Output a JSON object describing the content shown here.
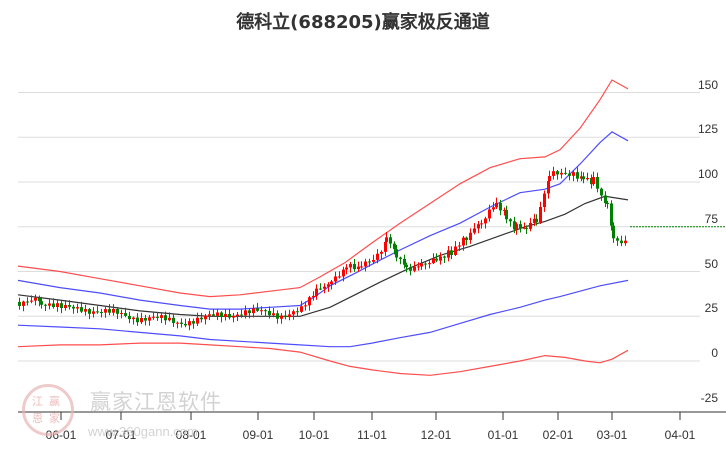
{
  "title": "德科立(688205)赢家极反通道",
  "watermark": {
    "brand": "赢家江恩软件",
    "url": "www.360gann.com",
    "logo_chars": [
      "江",
      "赢",
      "恩",
      "家"
    ]
  },
  "colors": {
    "outer_band": "#ff3333",
    "inner_band": "#3333ff",
    "middle_line": "#333333",
    "candle_up": "#ff0000",
    "candle_down": "#008000",
    "last_price_line": "#008000",
    "grid": "#dddddd"
  },
  "chart_data": {
    "type": "candlestick-channel",
    "title": "德科立(688205)赢家极反通道",
    "xlabel": "",
    "ylabel": "",
    "ylim": [
      -25,
      165
    ],
    "grid": true,
    "y_ticks": [
      150,
      125,
      100,
      75,
      50,
      25,
      0,
      -25
    ],
    "x_ticks": [
      "06-01",
      "07-01",
      "08-01",
      "09-01",
      "10-01",
      "11-01",
      "12-01",
      "01-01",
      "02-01",
      "03-01",
      "04-01"
    ],
    "last_price": 75,
    "series": [
      {
        "name": "upper_outer",
        "color": "red",
        "points": [
          [
            18,
            53
          ],
          [
            60,
            50
          ],
          [
            100,
            46
          ],
          [
            140,
            42
          ],
          [
            180,
            38
          ],
          [
            210,
            36
          ],
          [
            240,
            37
          ],
          [
            270,
            39
          ],
          [
            300,
            41
          ],
          [
            320,
            47
          ],
          [
            345,
            55
          ],
          [
            372,
            66
          ],
          [
            400,
            77
          ],
          [
            430,
            88
          ],
          [
            460,
            99
          ],
          [
            490,
            108
          ],
          [
            520,
            113
          ],
          [
            545,
            114
          ],
          [
            560,
            118
          ],
          [
            580,
            130
          ],
          [
            600,
            146
          ],
          [
            612,
            157
          ],
          [
            628,
            152
          ]
        ]
      },
      {
        "name": "upper_inner",
        "color": "blue",
        "points": [
          [
            18,
            45
          ],
          [
            60,
            41
          ],
          [
            100,
            38
          ],
          [
            140,
            34
          ],
          [
            180,
            31
          ],
          [
            210,
            29
          ],
          [
            240,
            29
          ],
          [
            270,
            30
          ],
          [
            300,
            31
          ],
          [
            315,
            36
          ],
          [
            330,
            42
          ],
          [
            355,
            49
          ],
          [
            372,
            54
          ],
          [
            400,
            62
          ],
          [
            430,
            70
          ],
          [
            460,
            77
          ],
          [
            490,
            86
          ],
          [
            520,
            94
          ],
          [
            545,
            96
          ],
          [
            560,
            99
          ],
          [
            580,
            110
          ],
          [
            600,
            122
          ],
          [
            612,
            128
          ],
          [
            628,
            123
          ]
        ]
      },
      {
        "name": "middle",
        "color": "black",
        "points": [
          [
            18,
            37
          ],
          [
            60,
            34
          ],
          [
            100,
            31
          ],
          [
            140,
            28
          ],
          [
            180,
            26
          ],
          [
            210,
            25
          ],
          [
            240,
            25
          ],
          [
            270,
            25
          ],
          [
            300,
            25
          ],
          [
            330,
            30
          ],
          [
            355,
            37
          ],
          [
            380,
            44
          ],
          [
            410,
            52
          ],
          [
            440,
            59
          ],
          [
            470,
            64
          ],
          [
            500,
            70
          ],
          [
            525,
            75
          ],
          [
            545,
            78
          ],
          [
            565,
            82
          ],
          [
            585,
            88
          ],
          [
            605,
            92
          ],
          [
            628,
            90
          ]
        ]
      },
      {
        "name": "lower_inner",
        "color": "blue",
        "points": [
          [
            18,
            20
          ],
          [
            60,
            19
          ],
          [
            100,
            18
          ],
          [
            140,
            16
          ],
          [
            180,
            14
          ],
          [
            210,
            12
          ],
          [
            240,
            11
          ],
          [
            270,
            10
          ],
          [
            300,
            9
          ],
          [
            330,
            8
          ],
          [
            350,
            8
          ],
          [
            372,
            10
          ],
          [
            400,
            13
          ],
          [
            430,
            16
          ],
          [
            460,
            21
          ],
          [
            490,
            26
          ],
          [
            520,
            30
          ],
          [
            545,
            34
          ],
          [
            560,
            36
          ],
          [
            580,
            39
          ],
          [
            600,
            42
          ],
          [
            628,
            45
          ]
        ]
      },
      {
        "name": "lower_outer",
        "color": "red",
        "points": [
          [
            18,
            8
          ],
          [
            60,
            9
          ],
          [
            100,
            9
          ],
          [
            140,
            10
          ],
          [
            180,
            10
          ],
          [
            210,
            9
          ],
          [
            240,
            8
          ],
          [
            270,
            7
          ],
          [
            300,
            5
          ],
          [
            330,
            0
          ],
          [
            350,
            -3
          ],
          [
            372,
            -5
          ],
          [
            400,
            -7
          ],
          [
            430,
            -8
          ],
          [
            460,
            -6
          ],
          [
            490,
            -3
          ],
          [
            520,
            0
          ],
          [
            545,
            3
          ],
          [
            565,
            2
          ],
          [
            585,
            0
          ],
          [
            600,
            -1
          ],
          [
            612,
            1
          ],
          [
            628,
            6
          ]
        ]
      },
      {
        "name": "price_close",
        "color": "candles",
        "points": [
          [
            18,
            33
          ],
          [
            40,
            33
          ],
          [
            60,
            29
          ],
          [
            80,
            30
          ],
          [
            100,
            27
          ],
          [
            120,
            26
          ],
          [
            140,
            24
          ],
          [
            160,
            23
          ],
          [
            180,
            22
          ],
          [
            200,
            23
          ],
          [
            220,
            26
          ],
          [
            240,
            27
          ],
          [
            260,
            27
          ],
          [
            280,
            26
          ],
          [
            300,
            28
          ],
          [
            315,
            38
          ],
          [
            330,
            43
          ],
          [
            345,
            52
          ],
          [
            360,
            53
          ],
          [
            372,
            58
          ],
          [
            385,
            67
          ],
          [
            395,
            60
          ],
          [
            405,
            52
          ],
          [
            420,
            55
          ],
          [
            435,
            58
          ],
          [
            450,
            62
          ],
          [
            465,
            70
          ],
          [
            480,
            78
          ],
          [
            495,
            88
          ],
          [
            505,
            81
          ],
          [
            515,
            75
          ],
          [
            525,
            73
          ],
          [
            535,
            80
          ],
          [
            548,
            103
          ],
          [
            560,
            105
          ],
          [
            572,
            106
          ],
          [
            582,
            102
          ],
          [
            592,
            101
          ],
          [
            600,
            90
          ],
          [
            606,
            88
          ],
          [
            612,
            70
          ],
          [
            620,
            67
          ],
          [
            628,
            72
          ]
        ]
      }
    ]
  }
}
